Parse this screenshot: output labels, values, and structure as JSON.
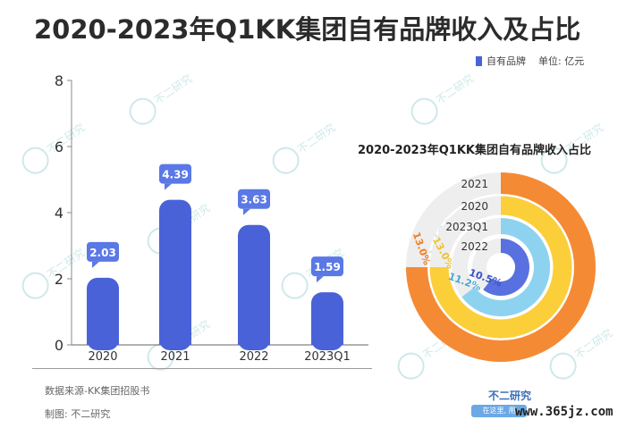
{
  "title": "2020-2023年Q1KK集团自有品牌收入及占比",
  "legend": {
    "label": "自有品牌",
    "unit": "单位: 亿元",
    "color": "#4a62d8"
  },
  "donut_title": "2020-2023年Q1KK集团自有品牌收入占比",
  "footer": {
    "source": "数据来源-KK集团招股书",
    "maker": "制图: 不二研究"
  },
  "brand": {
    "name": "不二研究",
    "slogan": "在这里, 用"
  },
  "watermark": {
    "text": "不二研究",
    "url": "www.365jz.com"
  },
  "chart_data": [
    {
      "type": "bar",
      "categories": [
        "2020",
        "2021",
        "2022",
        "2023Q1"
      ],
      "values": [
        2.03,
        4.39,
        3.63,
        1.59
      ],
      "series": [
        {
          "name": "自有品牌",
          "values": [
            2.03,
            4.39,
            3.63,
            1.59
          ]
        }
      ],
      "ylim": [
        0,
        8
      ],
      "yticks": [
        0,
        2,
        4,
        6,
        8
      ],
      "bar_color": "#4a62d8",
      "label_color": "#5a78e6",
      "grid": false
    },
    {
      "type": "pie",
      "title": "2020-2023年Q1KK集团自有品牌收入占比",
      "categories": [
        "2021",
        "2020",
        "2023Q1",
        "2022"
      ],
      "values": [
        13.0,
        13.0,
        11.2,
        10.5
      ],
      "labels": [
        "13.0%",
        "13.0%",
        "11.2%",
        "10.5%"
      ],
      "colors": [
        "#f58a35",
        "#fbcf3a",
        "#8dd3f0",
        "#5970e0"
      ],
      "label_colors": [
        "#f07e22",
        "#f2c12a",
        "#4aa6d8",
        "#3a52c8"
      ],
      "track_color": "#eeeeee"
    }
  ]
}
